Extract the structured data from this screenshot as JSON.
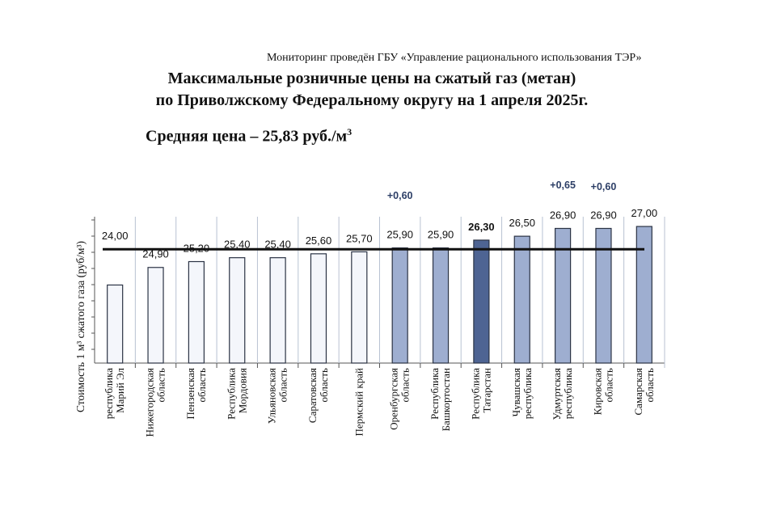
{
  "header": {
    "source": "Мониторинг проведён ГБУ «Управление рационального использования ТЭР»",
    "title_line1": "Максимальные розничные цены на сжатый газ (метан)",
    "title_line2": "по Приволжскому Федеральному округу на 1 апреля 2025г.",
    "average_prefix": "Средняя цена – 25,83 руб./м",
    "average_sup": "3"
  },
  "chart_data": {
    "type": "bar",
    "title": "Максимальные розничные цены на сжатый газ (метан) по Приволжскому Федеральному округу на 1 апреля 2025г.",
    "ylabel": "Стоимость 1 м³ сжатого газа  (руб/м³)",
    "xlabel": "",
    "ylim": [
      20,
      27.5
    ],
    "average": 25.83,
    "categories": [
      [
        "республика",
        "Марий Эл"
      ],
      [
        "Нижегородская",
        "область"
      ],
      [
        "Пензенская",
        "область"
      ],
      [
        "Республика",
        "Мордовия"
      ],
      [
        "Ульяновская",
        "область"
      ],
      [
        "Саратовская",
        "область"
      ],
      [
        "Пермский край"
      ],
      [
        "Оренбургская",
        "область"
      ],
      [
        "Республика",
        "Башкортостан"
      ],
      [
        "Республика",
        "Татарстан"
      ],
      [
        "Чувашская",
        "республика"
      ],
      [
        "Удмуртская",
        "республика"
      ],
      [
        "Кировская",
        "область"
      ],
      [
        "Самарская",
        "область"
      ]
    ],
    "values": [
      24.0,
      24.9,
      25.2,
      25.4,
      25.4,
      25.6,
      25.7,
      25.9,
      25.9,
      26.3,
      26.5,
      26.9,
      26.9,
      27.0
    ],
    "value_labels": [
      "24,00",
      "24,90",
      "25,20",
      "25,40",
      "25,40",
      "25,60",
      "25,70",
      "25,90",
      "25,90",
      "26,30",
      "26,50",
      "26,90",
      "26,90",
      "27,00"
    ],
    "change_labels": [
      "",
      "",
      "",
      "",
      "",
      "",
      "",
      "+0,60",
      "",
      "",
      "",
      "+0,65",
      "+0,60",
      ""
    ],
    "highlight_index": 9,
    "bar_colors": {
      "above_avg": "#9eaed0",
      "below_avg": "#f4f6fb",
      "highlight": "#4e6493",
      "edge": "#2b3344",
      "average_line": "#111111",
      "grid": "#b8c2d2"
    }
  }
}
